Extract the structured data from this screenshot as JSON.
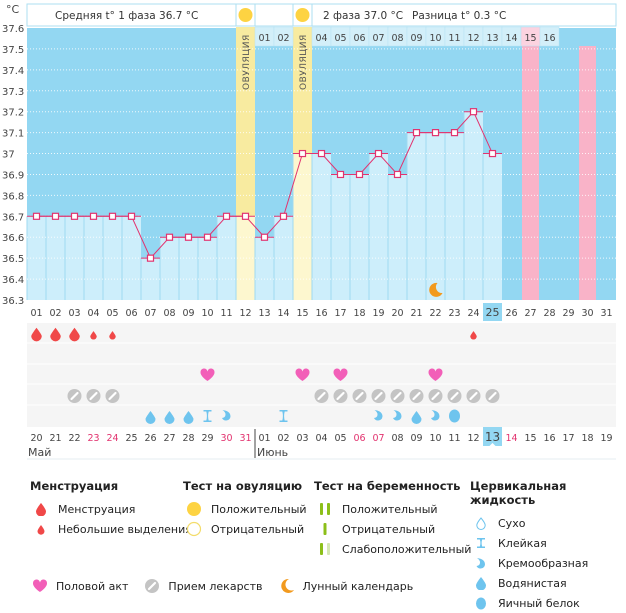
{
  "chart_data": {
    "type": "line",
    "title": "",
    "ylabel": "°C",
    "ylim": [
      36.3,
      37.6
    ],
    "yticks": [
      "37.6",
      "37.5",
      "37.4",
      "37.3",
      "37.2",
      "37.1",
      "37",
      "36.9",
      "36.8",
      "36.7",
      "36.6",
      "36.5",
      "36.4",
      "36.3"
    ],
    "grid": true,
    "cycle_days": [
      "01",
      "02",
      "03",
      "04",
      "05",
      "06",
      "07",
      "08",
      "09",
      "10",
      "11",
      "12",
      "13",
      "14",
      "15",
      "16",
      "17",
      "18",
      "19",
      "20",
      "21",
      "22",
      "23",
      "24",
      "25",
      "26",
      "27",
      "28",
      "29",
      "30",
      "31"
    ],
    "calendar_days": [
      "20",
      "21",
      "22",
      "23",
      "24",
      "25",
      "26",
      "27",
      "28",
      "29",
      "30",
      "31",
      "01",
      "02",
      "03",
      "04",
      "05",
      "06",
      "07",
      "08",
      "09",
      "10",
      "11",
      "12",
      "13",
      "14",
      "15",
      "16",
      "17",
      "18",
      "19"
    ],
    "weekend_calendar_indices": [
      3,
      4,
      10,
      11,
      17,
      18,
      25
    ],
    "today_index": 24,
    "months": [
      {
        "label": "Май",
        "start_index": 0
      },
      {
        "label": "Июнь",
        "start_index": 12
      }
    ],
    "temperatures": [
      36.7,
      36.7,
      36.7,
      36.7,
      36.7,
      36.7,
      36.5,
      36.6,
      36.6,
      36.6,
      36.7,
      36.7,
      36.6,
      36.7,
      37.0,
      37.0,
      36.9,
      36.9,
      37.0,
      36.9,
      37.1,
      37.1,
      37.1,
      37.2,
      37.0
    ],
    "ovulation_days": [
      12,
      15
    ],
    "ovulation_label": "ОВУЛЯЦИЯ",
    "ovulation_test_positive_days": [
      12,
      15
    ],
    "next_cycle_days": [
      "01",
      "02",
      "03",
      "04",
      "05",
      "06",
      "07",
      "08",
      "09",
      "10",
      "11",
      "12",
      "13",
      "14",
      "15",
      "16"
    ],
    "next_cycle_start_index": 13,
    "predicted_period_days": [
      27,
      30
    ],
    "lunar_day": 22,
    "markers": {
      "menstruation": [
        1,
        2,
        3
      ],
      "spotting": [
        4,
        5,
        24
      ],
      "intercourse": [
        10,
        15,
        17,
        22
      ],
      "medication": [
        3,
        4,
        5,
        16,
        17,
        18,
        19,
        20,
        21,
        22,
        23,
        24,
        25
      ],
      "fluid_watery": [
        7,
        8,
        9,
        21
      ],
      "fluid_sticky": [
        10,
        14
      ],
      "fluid_creamy": [
        11,
        19,
        20,
        22
      ],
      "fluid_eggwhite": [
        23
      ]
    }
  },
  "summary": {
    "phase1": "Средняя t° 1 фаза 36.7 °С",
    "phase2": "2 фаза 37.0 °С",
    "diff": "Разница t° 0.3 °С"
  },
  "colors": {
    "sky": "#93d7f2",
    "bar": "#cdeefb",
    "line": "#e2336f",
    "ovulation": "#f8eba0",
    "period_pred": "#f9b3c8",
    "blood": "#f04848",
    "heart": "#f25fb8",
    "pill": "#c4c4c4",
    "fluid": "#6ec4ee",
    "sun": "#fdd342",
    "moon": "#f29a1e",
    "weekend": "#e2336f",
    "green": "#8cbf1a"
  },
  "legend": {
    "menstruation": {
      "title": "Менструация",
      "items": [
        "Менструация",
        "Небольшие выделения"
      ]
    },
    "ovulation_test": {
      "title": "Тест на овуляцию",
      "items": [
        "Положительный",
        "Отрицательный"
      ]
    },
    "pregnancy_test": {
      "title": "Тест на беременность",
      "items": [
        "Положительный",
        "Отрицательный",
        "Слабоположительный"
      ]
    },
    "cervical": {
      "title": "Цервикальная жидкость",
      "items": [
        "Сухо",
        "Клейкая",
        "Кремообразная",
        "Водянистая",
        "Яичный белок"
      ]
    },
    "bottom": [
      "Половой акт",
      "Прием лекарств",
      "Лунный календарь"
    ]
  }
}
